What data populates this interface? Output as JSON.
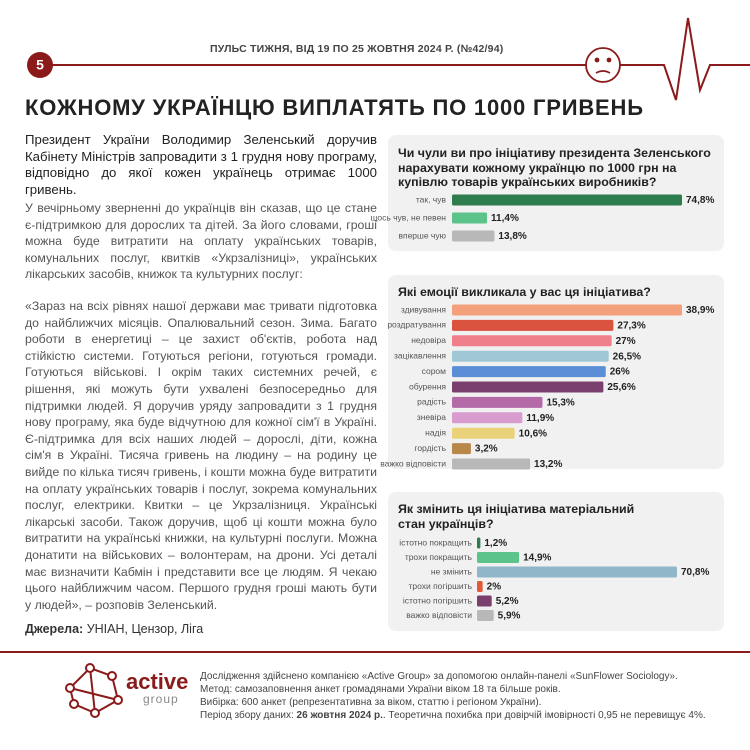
{
  "header": {
    "page_number": "5",
    "issue": "ПУЛЬС ТИЖНЯ, ВІД 19 ПО 25 ЖОВТНЯ 2024 Р. (№42/94)"
  },
  "title": "КОЖНОМУ УКРАЇНЦЮ ВИПЛАТЯТЬ ПО 1000 ГРИВЕНЬ",
  "body": {
    "lead": "Президент України Володимир Зеленський доручив Кабінету Міністрів запровадити з 1 грудня нову програму, відповідно до якої кожен українець отримає 1000 гривень.",
    "paragraphs": [
      "У вечірньому зверненні до українців він сказав, що це стане є-підтримкою для дорослих та дітей. За його словами, гроші можна буде витратити на оплату українських товарів, комунальних послуг, квитків «Укрзалізниці», українських лікарських засобів, книжок та культурних послуг:",
      "«Зараз на всіх рівнях нашої держави має тривати підготовка до найближчих місяців. Опалювальний сезон. Зима. Багато роботи в енергетиці – це захист об'єктів, робота над стійкістю системи. Готуються регіони, готуються громади. Готуються військові. І окрім таких системних речей, є рішення, які можуть бути ухвалені безпосередньо для підтримки людей. Я доручив уряду запровадити з 1 грудня нову програму, яка буде відчутною для кожної сім'ї в Україні. Є-підтримка для всіх наших людей – дорослі, діти, кожна сім'я в Україні. Тисяча гривень на людину – на родину це вийде по кілька тисяч гривень, і кошти можна буде витратити на оплату українських товарів і послуг, зокрема комунальних послуг, електрики. Квитки – це Укрзалізниця. Українські лікарські засоби. Також доручив, щоб ці кошти можна було витратити на українські книжки, на культурні послуги. Можна донатити на військових – волонтерам, на дрони. Усі деталі має визначити Кабмін і представити все це людям. Я чекаю цього найближчим часом. Першого грудня гроші мають бути у людей», – розповів Зеленський."
    ],
    "sources_label": "Джерела:",
    "sources": "УНІАН, Цензор, Ліга"
  },
  "chart_data": [
    {
      "type": "bar",
      "title": "Чи чули ви про ініціативу президента Зеленського нарахувати кожному українцю по 1000 грн на купівлю товарів українських виробників?",
      "categories": [
        "так, чув",
        "щось чув, не певен",
        "вперше чую"
      ],
      "values": [
        74.8,
        11.4,
        13.8
      ],
      "value_labels": [
        "74,8%",
        "11,4%",
        "13,8%"
      ],
      "colors": [
        "#2e7d4f",
        "#5cc48a",
        "#b8b8b8"
      ]
    },
    {
      "type": "bar",
      "title": "Які емоції викликала у вас ця ініціатива?",
      "categories": [
        "здивування",
        "роздратування",
        "недовіра",
        "зацікавлення",
        "сором",
        "обурення",
        "радість",
        "зневіра",
        "надія",
        "гордість",
        "важко відповісти"
      ],
      "values": [
        38.9,
        27.3,
        27,
        26.5,
        26,
        25.6,
        15.3,
        11.9,
        10.6,
        3.2,
        13.2
      ],
      "value_labels": [
        "38,9%",
        "27,3%",
        "27%",
        "26,5%",
        "26%",
        "25,6%",
        "15,3%",
        "11,9%",
        "10,6%",
        "3,2%",
        "13,2%"
      ],
      "colors": [
        "#f4a07a",
        "#d9533f",
        "#f07f8c",
        "#9fc7d6",
        "#5a8fd8",
        "#7b3f6e",
        "#b36aa6",
        "#d99ccf",
        "#ead27a",
        "#b8874a",
        "#b8b8b8"
      ]
    },
    {
      "type": "bar",
      "title": "Як змінить ця ініціатива матеріальний стан українців?",
      "categories": [
        "істотно покращить",
        "трохи покращить",
        "не змінить",
        "трохи погіршить",
        "істотно погіршить",
        "важко відповісти"
      ],
      "values": [
        1.2,
        14.9,
        70.8,
        2,
        5.2,
        5.9
      ],
      "value_labels": [
        "1,2%",
        "14,9%",
        "70,8%",
        "2%",
        "5,2%",
        "5,9%"
      ],
      "colors": [
        "#2e7d4f",
        "#5cc48a",
        "#8fb7c9",
        "#e05a3a",
        "#7b3f6e",
        "#b8b8b8"
      ]
    }
  ],
  "footer": {
    "logo_top": "active",
    "logo_bottom": "group",
    "lines": [
      "Дослідження здійснено компанією «Active Group» за допомогою онлайн-панелі «SunFlower Sociology».",
      "Метод: самозаповнення анкет громадянами України віком 18 та більше років.",
      "Вибірка: 600 анкет (репрезентативна за віком, статтю і регіоном України)."
    ],
    "period_label": "Період збору даних:",
    "period_date": "26 жовтня 2024 р.",
    "period_rest": ". Теоретична похибка при довірчій імовірності 0,95 не перевищує 4%."
  }
}
